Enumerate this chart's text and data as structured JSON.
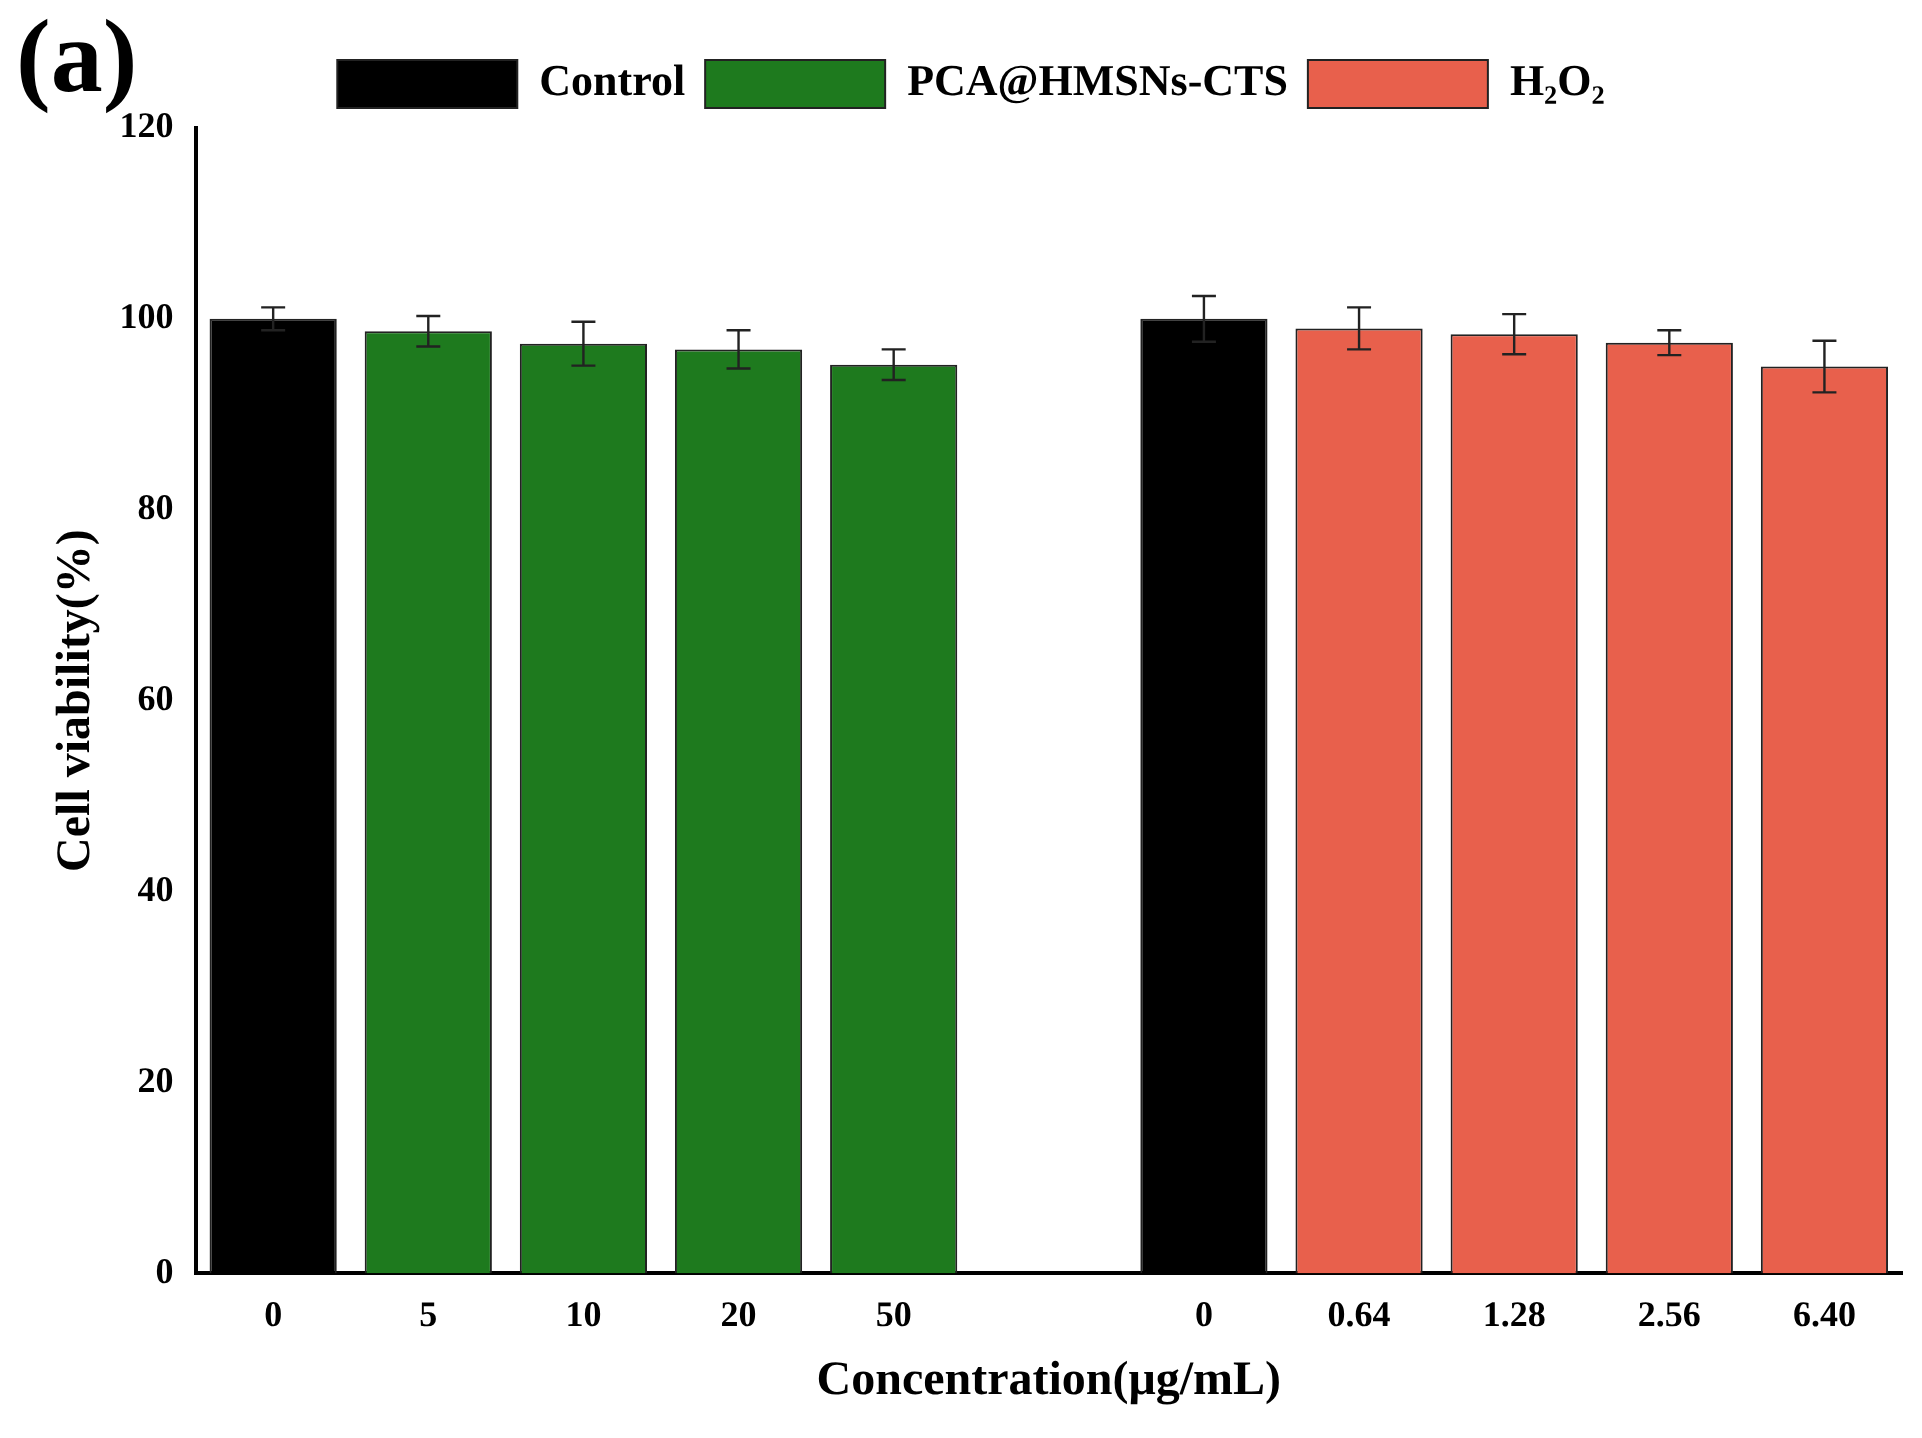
{
  "chart_data": {
    "type": "bar",
    "xlabel": "Concentration(μg/mL)",
    "ylabel": "Cell viability(%)",
    "annotations": [
      "(a)"
    ],
    "categories": [
      "0",
      "5",
      "10",
      "20",
      "50",
      null,
      "0",
      "0.64",
      "1.28",
      "2.56",
      "6.40"
    ],
    "series": [
      {
        "name": "Control",
        "color": "#000000",
        "values": [
          100,
          null,
          null,
          null,
          null,
          null,
          100,
          null,
          null,
          null,
          null
        ],
        "errors": [
          1.2,
          null,
          null,
          null,
          null,
          null,
          2.4,
          null,
          null,
          null,
          null
        ]
      },
      {
        "name": "PCA@HMSNs-CTS",
        "color": "#1e7a1e",
        "values": [
          null,
          98.7,
          97.4,
          96.8,
          95.2,
          null,
          null,
          null,
          null,
          null,
          null
        ],
        "errors": [
          null,
          1.6,
          2.3,
          2.0,
          1.6,
          null,
          null,
          null,
          null,
          null,
          null
        ]
      },
      {
        "name": "H₂O₂",
        "color": "#e8604c",
        "values": [
          null,
          null,
          null,
          null,
          null,
          null,
          null,
          99.0,
          98.4,
          97.5,
          95.0
        ],
        "errors": [
          null,
          null,
          null,
          null,
          null,
          null,
          null,
          2.2,
          2.1,
          1.3,
          2.7
        ]
      }
    ],
    "ylim": [
      0,
      120
    ],
    "yticks": [
      0,
      20,
      40,
      60,
      80,
      100,
      120
    ],
    "grid": false,
    "legend": "top"
  }
}
